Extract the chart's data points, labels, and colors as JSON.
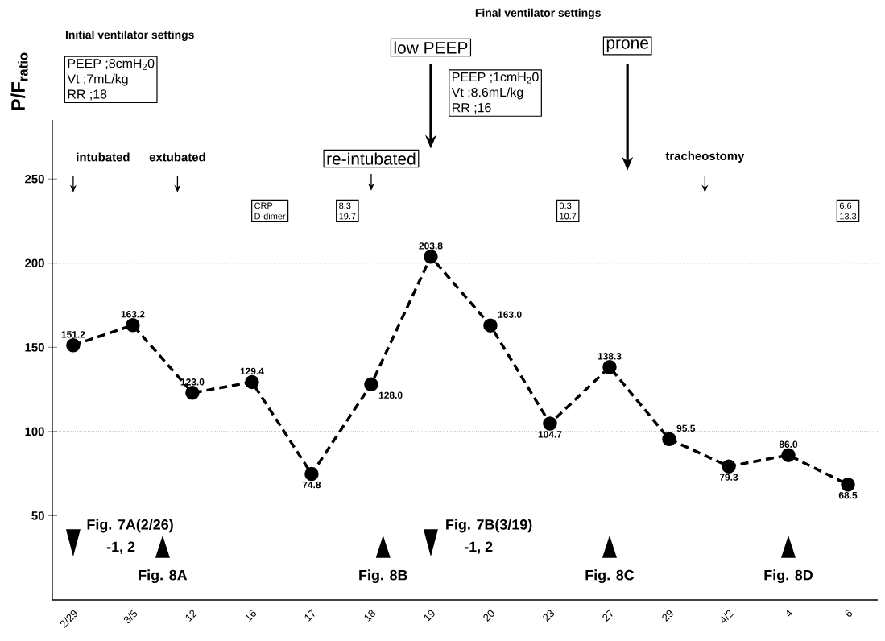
{
  "chart_data": {
    "type": "line",
    "ylabel": "P/F$_{ratio}$",
    "categories": [
      "2/29",
      "3/5",
      "12",
      "16",
      "17",
      "18",
      "19",
      "20",
      "23",
      "27",
      "29",
      "4/2",
      "4",
      "6"
    ],
    "values": [
      151.2,
      163.2,
      123.0,
      129.4,
      74.8,
      128.0,
      203.8,
      163.0,
      104.7,
      138.3,
      95.5,
      79.3,
      86.0,
      68.5
    ],
    "value_labels": [
      "151.2",
      "163.2",
      "123.0",
      "129.4",
      "74.8",
      "128.0",
      "203.8",
      "163.0",
      "104.7",
      "138.3",
      "95.5",
      "79.3",
      "86.0",
      "68.5"
    ],
    "color": "#000000",
    "marker": "circle",
    "line_style": "dashed",
    "ylim": [
      0,
      285
    ],
    "yticks": [
      50,
      100,
      150,
      200,
      250
    ],
    "ref_lines": [
      {
        "axis": "y",
        "value": 200,
        "line_style": "dotted"
      },
      {
        "axis": "y",
        "value": 100,
        "line_style": "dotted"
      }
    ],
    "annotations": [
      "Initial ventilator settings",
      "PEEP ;8cmH$_{2}$0",
      "Vt ;7mL/kg",
      "RR ;18",
      "Final ventilator settings",
      "PEEP ;1cmH$_{2}$0",
      "Vt ;8.6mL/kg",
      "RR ;16",
      "low PEEP",
      "prone",
      "re-intubated",
      "intubated",
      "extubated",
      "tracheostomy",
      "CRP",
      "D-dimer",
      "8.3",
      "19.7",
      "0.3",
      "10.7",
      "6.6",
      "13.3",
      "Fig. 7A(2/26)",
      "-1, 2",
      "Fig. 7B(3/19)",
      "-1, 2",
      "Fig. 8A",
      "Fig. 8B",
      "Fig. 8C",
      "Fig. 8D"
    ]
  }
}
